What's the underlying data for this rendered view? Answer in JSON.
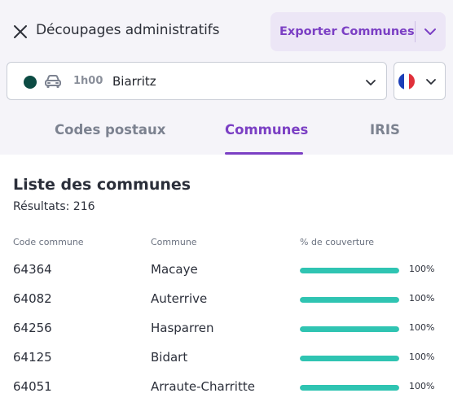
{
  "header": {
    "title": "Découpages administratifs",
    "export_label": "Exporter Communes"
  },
  "search": {
    "duration": "1h00",
    "city": "Biarritz"
  },
  "tabs": [
    {
      "label": "Codes postaux",
      "active": false
    },
    {
      "label": "Communes",
      "active": true
    },
    {
      "label": "IRIS",
      "active": false
    }
  ],
  "list": {
    "title": "Liste des communes",
    "results": "Résultats: 216",
    "columns": [
      "Code commune",
      "Commune",
      "% de couverture"
    ],
    "rows": [
      {
        "code": "64364",
        "name": "Macaye",
        "coverage": 100,
        "coverage_label": "100%"
      },
      {
        "code": "64082",
        "name": "Auterrive",
        "coverage": 100,
        "coverage_label": "100%"
      },
      {
        "code": "64256",
        "name": "Hasparren",
        "coverage": 100,
        "coverage_label": "100%"
      },
      {
        "code": "64125",
        "name": "Bidart",
        "coverage": 100,
        "coverage_label": "100%"
      },
      {
        "code": "64051",
        "name": "Arraute-Charritte",
        "coverage": 100,
        "coverage_label": "100%"
      }
    ]
  },
  "colors": {
    "accent": "#7b3fc4",
    "coverage_bar": "#2fc4b2",
    "status_dot": "#0c4b43"
  },
  "icons": {
    "close": "close-icon",
    "export_menu": "chevron-down-icon",
    "transport": "car-icon",
    "country": "france-flag-icon"
  }
}
